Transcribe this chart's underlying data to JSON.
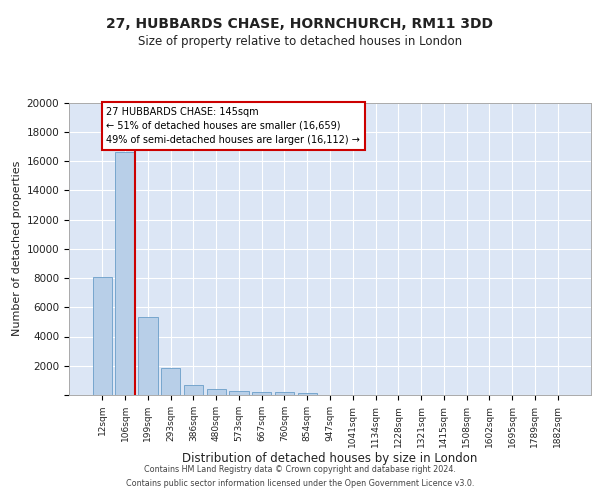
{
  "title1": "27, HUBBARDS CHASE, HORNCHURCH, RM11 3DD",
  "title2": "Size of property relative to detached houses in London",
  "xlabel": "Distribution of detached houses by size in London",
  "ylabel": "Number of detached properties",
  "categories": [
    "12sqm",
    "106sqm",
    "199sqm",
    "293sqm",
    "386sqm",
    "480sqm",
    "573sqm",
    "667sqm",
    "760sqm",
    "854sqm",
    "947sqm",
    "1041sqm",
    "1134sqm",
    "1228sqm",
    "1321sqm",
    "1415sqm",
    "1508sqm",
    "1602sqm",
    "1695sqm",
    "1789sqm",
    "1882sqm"
  ],
  "values": [
    8100,
    16600,
    5300,
    1850,
    700,
    380,
    280,
    220,
    190,
    130,
    0,
    0,
    0,
    0,
    0,
    0,
    0,
    0,
    0,
    0,
    0
  ],
  "bar_color": "#b8cfe8",
  "bar_edge_color": "#6a9ec8",
  "vline_color": "#cc0000",
  "annotation_line1": "27 HUBBARDS CHASE: 145sqm",
  "annotation_line2": "← 51% of detached houses are smaller (16,659)",
  "annotation_line3": "49% of semi-detached houses are larger (16,112) →",
  "annotation_box_color": "#cc0000",
  "ylim": [
    0,
    20000
  ],
  "yticks": [
    0,
    2000,
    4000,
    6000,
    8000,
    10000,
    12000,
    14000,
    16000,
    18000,
    20000
  ],
  "bg_color": "#dce6f5",
  "footer1": "Contains HM Land Registry data © Crown copyright and database right 2024.",
  "footer2": "Contains public sector information licensed under the Open Government Licence v3.0."
}
